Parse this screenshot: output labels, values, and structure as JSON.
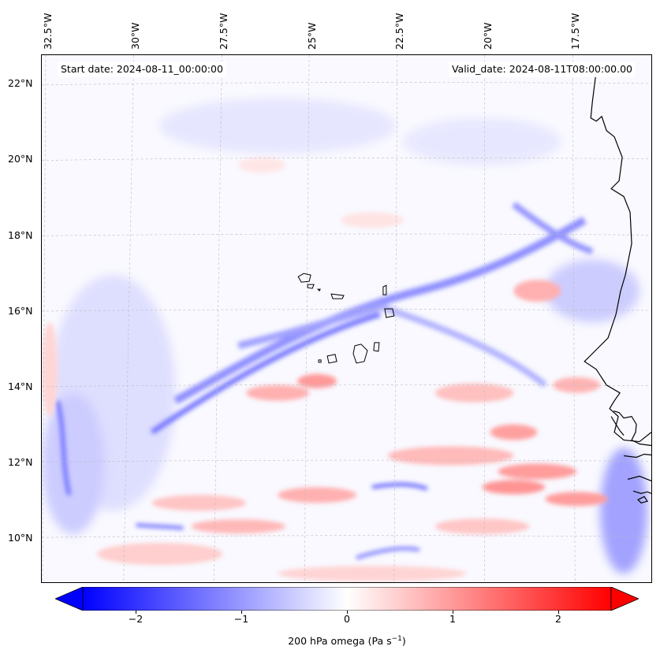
{
  "map": {
    "start_date": "Start date: 2024-08-11_00:00:00",
    "valid_date": "Valid_date: 2024-08-11T08:00:00.00",
    "lon_labels": [
      "32.5°W",
      "30°W",
      "27.5°W",
      "25°W",
      "22.5°W",
      "20°W",
      "17.5°W"
    ],
    "lat_labels": [
      "22°N",
      "20°N",
      "18°N",
      "16°N",
      "14°N",
      "12°N",
      "10°N"
    ]
  },
  "colorbar": {
    "ticks": [
      "−2",
      "−1",
      "0",
      "1",
      "2"
    ],
    "label_main": "200 hPa omega (Pa s",
    "label_exp": "−1",
    "label_close": ")",
    "min": -2.7,
    "max": 2.7,
    "colors": {
      "negative": "#0000ff",
      "zero": "#ffffff",
      "positive": "#ff0000"
    }
  },
  "colors": {
    "coast": "#000000",
    "grid": "#bbbbbb"
  }
}
